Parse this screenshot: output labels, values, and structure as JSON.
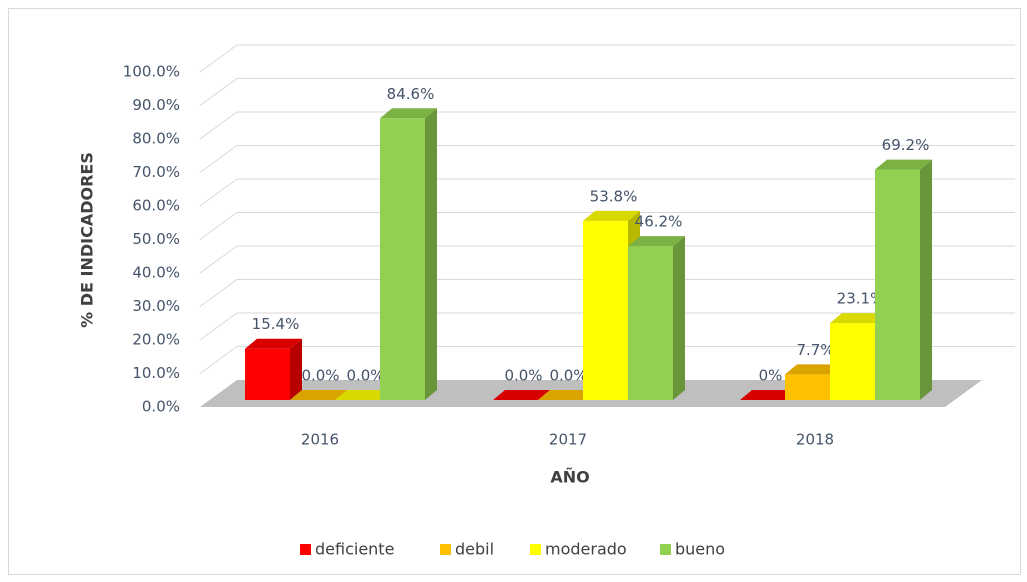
{
  "chart_data": {
    "type": "bar3d",
    "categories": [
      "2016",
      "2017",
      "2018"
    ],
    "series": [
      {
        "name": "deficiente",
        "color": "#ff0000",
        "values": [
          15.4,
          0,
          0
        ],
        "value_labels": [
          "15.4%",
          "0.0%",
          "0%"
        ]
      },
      {
        "name": "debil",
        "color": "#ffc000",
        "values": [
          0,
          0,
          7.7
        ],
        "value_labels": [
          "0.0%",
          "0.0%",
          "7.7%"
        ]
      },
      {
        "name": "moderado",
        "color": "#ffff00",
        "values": [
          0,
          53.8,
          23.1
        ],
        "value_labels": [
          "0.0%",
          "53.8%",
          "23.1%"
        ]
      },
      {
        "name": "bueno",
        "color": "#92d050",
        "values": [
          84.6,
          46.2,
          69.2
        ],
        "value_labels": [
          "84.6%",
          "46.2%",
          "69.2%"
        ]
      }
    ],
    "ylim": [
      0,
      100
    ],
    "yticks": [
      {
        "value": 0,
        "label": "0.0%"
      },
      {
        "value": 10,
        "label": "10.0%"
      },
      {
        "value": 20,
        "label": "20.0%"
      },
      {
        "value": 30,
        "label": "30.0%"
      },
      {
        "value": 40,
        "label": "40.0%"
      },
      {
        "value": 50,
        "label": "50.0%"
      },
      {
        "value": 60,
        "label": "60.0%"
      },
      {
        "value": 70,
        "label": "70.0%"
      },
      {
        "value": 80,
        "label": "80.0%"
      },
      {
        "value": 90,
        "label": "90.0%"
      },
      {
        "value": 100,
        "label": "100.0%"
      }
    ],
    "ylabel": "% DE INDICADORES",
    "xlabel": "AÑO",
    "grid": true,
    "legend": "bottom"
  }
}
